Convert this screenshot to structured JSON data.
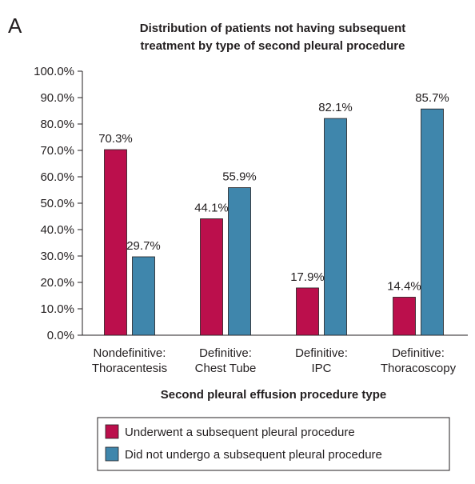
{
  "panel_letter": "A",
  "colors": {
    "series_1": "#bb0f4c",
    "series_2": "#3f86ac",
    "axis": "#231f20",
    "bar_outline": "#231f20"
  },
  "chart_data": {
    "type": "bar",
    "title_lines": [
      "Distribution of patients not having subsequent",
      "treatment by type of second pleural procedure"
    ],
    "categories": [
      [
        "Nondefinitive:",
        "Thoracentesis"
      ],
      [
        "Definitive:",
        "Chest Tube"
      ],
      [
        "Definitive:",
        "IPC"
      ],
      [
        "Definitive:",
        "Thoracoscopy"
      ]
    ],
    "series": [
      {
        "name": "Underwent a subsequent pleural procedure",
        "values": [
          70.3,
          44.1,
          17.9,
          14.4
        ],
        "labels": [
          "70.3%",
          "44.1%",
          "17.9%",
          "14.4%"
        ]
      },
      {
        "name": "Did not undergo a subsequent pleural procedure",
        "values": [
          29.7,
          55.9,
          82.1,
          85.7
        ],
        "labels": [
          "29.7%",
          "55.9%",
          "82.1%",
          "85.7%"
        ]
      }
    ],
    "xlabel": "Second pleural effusion procedure type",
    "ylabel": "",
    "ylim": [
      0,
      100
    ],
    "yticks": [
      0,
      10,
      20,
      30,
      40,
      50,
      60,
      70,
      80,
      90,
      100
    ],
    "ytick_labels": [
      "0.0%",
      "10.0%",
      "20.0%",
      "30.0%",
      "40.0%",
      "50.0%",
      "60.0%",
      "70.0%",
      "80.0%",
      "90.0%",
      "100.0%"
    ],
    "grid": false,
    "legend_position": "bottom"
  }
}
